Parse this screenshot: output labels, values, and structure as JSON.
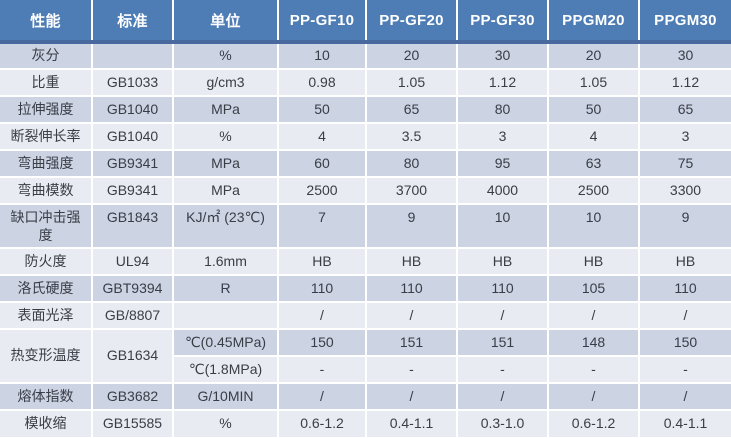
{
  "palette": {
    "header_bg": "#4e7db5",
    "header_border": "#47699e",
    "header_text": "#ffffff",
    "row_dark": "#ccd3e3",
    "row_light": "#e9ebf3",
    "body_text": "#383d46",
    "grid": "#ffffff"
  },
  "table": {
    "headers": [
      "性能",
      "标准",
      "单位",
      "PP-GF10",
      "PP-GF20",
      "PP-GF30",
      "PPGM20",
      "PPGM30"
    ],
    "rows": [
      {
        "shade": "dark",
        "cells": [
          {
            "t": "灰分"
          },
          {
            "t": ""
          },
          {
            "t": "%"
          },
          {
            "t": "10"
          },
          {
            "t": "20"
          },
          {
            "t": "30"
          },
          {
            "t": "20"
          },
          {
            "t": "30"
          }
        ]
      },
      {
        "shade": "light",
        "cells": [
          {
            "t": "比重"
          },
          {
            "t": "GB1033"
          },
          {
            "t": "g/cm3"
          },
          {
            "t": "0.98"
          },
          {
            "t": "1.05"
          },
          {
            "t": "1.12"
          },
          {
            "t": "1.05"
          },
          {
            "t": "1.12"
          }
        ]
      },
      {
        "shade": "dark",
        "cells": [
          {
            "t": "拉伸强度"
          },
          {
            "t": "GB1040"
          },
          {
            "t": "MPa"
          },
          {
            "t": "50"
          },
          {
            "t": "65"
          },
          {
            "t": "80"
          },
          {
            "t": "50"
          },
          {
            "t": "65"
          }
        ]
      },
      {
        "shade": "light",
        "cells": [
          {
            "t": "断裂伸长率"
          },
          {
            "t": "GB1040"
          },
          {
            "t": "%"
          },
          {
            "t": "4"
          },
          {
            "t": "3.5"
          },
          {
            "t": "3"
          },
          {
            "t": "4"
          },
          {
            "t": "3"
          }
        ]
      },
      {
        "shade": "dark",
        "cells": [
          {
            "t": "弯曲强度"
          },
          {
            "t": "GB9341"
          },
          {
            "t": "MPa"
          },
          {
            "t": "60"
          },
          {
            "t": "80"
          },
          {
            "t": "95"
          },
          {
            "t": "63"
          },
          {
            "t": "75"
          }
        ]
      },
      {
        "shade": "light",
        "cells": [
          {
            "t": "弯曲模数"
          },
          {
            "t": "GB9341"
          },
          {
            "t": "MPa"
          },
          {
            "t": "2500"
          },
          {
            "t": "3700"
          },
          {
            "t": "4000"
          },
          {
            "t": "2500"
          },
          {
            "t": "3300"
          }
        ]
      },
      {
        "shade": "dark",
        "tall": true,
        "cells": [
          {
            "t": "缺口冲击强度"
          },
          {
            "t": "GB1843"
          },
          {
            "t": "KJ/㎡ (23℃)"
          },
          {
            "t": "7"
          },
          {
            "t": "9"
          },
          {
            "t": "10"
          },
          {
            "t": "10"
          },
          {
            "t": "9"
          }
        ]
      },
      {
        "shade": "light",
        "cells": [
          {
            "t": "防火度"
          },
          {
            "t": "UL94"
          },
          {
            "t": "1.6mm"
          },
          {
            "t": "HB"
          },
          {
            "t": "HB"
          },
          {
            "t": "HB"
          },
          {
            "t": "HB"
          },
          {
            "t": "HB"
          }
        ]
      },
      {
        "shade": "dark",
        "cells": [
          {
            "t": "洛氏硬度"
          },
          {
            "t": "GBT9394"
          },
          {
            "t": "R"
          },
          {
            "t": "110"
          },
          {
            "t": "110"
          },
          {
            "t": "110"
          },
          {
            "t": "105"
          },
          {
            "t": "110"
          }
        ]
      },
      {
        "shade": "light",
        "cells": [
          {
            "t": "表面光泽"
          },
          {
            "t": "GB/8807"
          },
          {
            "t": ""
          },
          {
            "t": "/"
          },
          {
            "t": "/"
          },
          {
            "t": "/"
          },
          {
            "t": "/"
          },
          {
            "t": "/"
          }
        ]
      },
      {
        "shade": "dark",
        "cells": [
          {
            "t": "热变形温度",
            "rowspan": 2,
            "shade": "light"
          },
          {
            "t": "GB1634",
            "rowspan": 2,
            "shade": "light"
          },
          {
            "t": "℃(0.45MPa)"
          },
          {
            "t": "150"
          },
          {
            "t": "151"
          },
          {
            "t": "151"
          },
          {
            "t": "148"
          },
          {
            "t": "150"
          }
        ]
      },
      {
        "shade": "light",
        "cells": [
          {
            "t": "℃(1.8MPa)"
          },
          {
            "t": "-"
          },
          {
            "t": "-"
          },
          {
            "t": "-"
          },
          {
            "t": "-"
          },
          {
            "t": "-"
          }
        ]
      },
      {
        "shade": "dark",
        "cells": [
          {
            "t": "熔体指数"
          },
          {
            "t": "GB3682"
          },
          {
            "t": "G/10MIN"
          },
          {
            "t": "/"
          },
          {
            "t": "/"
          },
          {
            "t": "/"
          },
          {
            "t": "/"
          },
          {
            "t": "/"
          }
        ]
      },
      {
        "shade": "light",
        "cells": [
          {
            "t": "模收缩"
          },
          {
            "t": "GB15585"
          },
          {
            "t": "%"
          },
          {
            "t": "0.6-1.2"
          },
          {
            "t": "0.4-1.1"
          },
          {
            "t": "0.3-1.0"
          },
          {
            "t": "0.6-1.2"
          },
          {
            "t": "0.4-1.1"
          }
        ]
      }
    ]
  }
}
